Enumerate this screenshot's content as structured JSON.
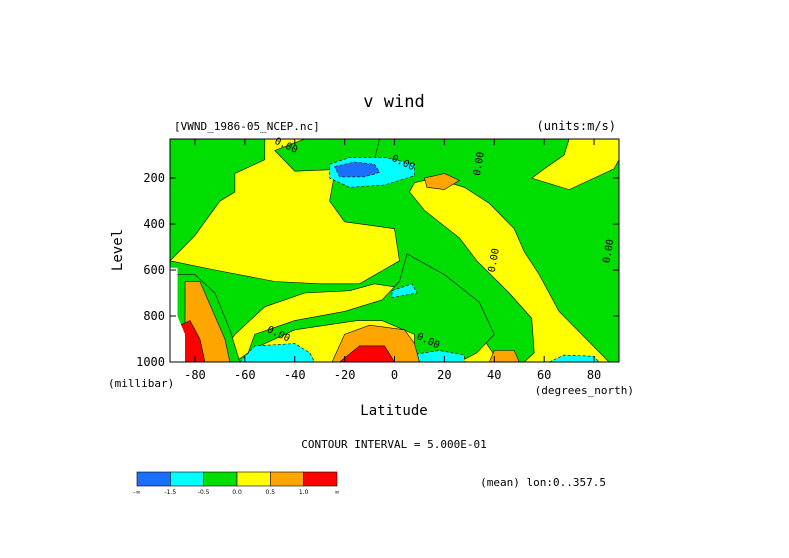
{
  "chart_data": {
    "type": "contour",
    "title": "v wind",
    "dataset_label": "[VWND_1986-05_NCEP.nc]",
    "units_label": "(units:m/s)",
    "xlabel": "Latitude",
    "ylabel": "Level",
    "x_units": "(degrees_north)",
    "y_units": "(millibar)",
    "xlim": [
      -90,
      90
    ],
    "ylim": [
      1000,
      30
    ],
    "y_inverted": true,
    "x_ticks": [
      -80,
      -60,
      -40,
      -20,
      0,
      20,
      40,
      60,
      80
    ],
    "x_tick_labels": [
      "-80",
      "-60",
      "-40",
      "-20",
      "0",
      "20",
      "40",
      "60",
      "80"
    ],
    "y_ticks": [
      200,
      400,
      600,
      800,
      1000
    ],
    "y_tick_labels": [
      "200",
      "400",
      "600",
      "800",
      "1000"
    ],
    "contour_interval_text": "CONTOUR INTERVAL = 5.000E-01",
    "contour_interval": 0.5,
    "mean_text": "(mean) lon:0..357.5",
    "contour_labels": [
      {
        "text": "0.00",
        "x": -44,
        "y": 70
      },
      {
        "text": "0.00",
        "x": 3,
        "y": 145
      },
      {
        "text": "0.00",
        "x": 35,
        "y": 140
      },
      {
        "text": "0.00",
        "x": 87,
        "y": 520
      },
      {
        "text": "0.00",
        "x": 41,
        "y": 560
      },
      {
        "text": "0.00",
        "x": -47,
        "y": 890
      },
      {
        "text": "0.00",
        "x": 13,
        "y": 920
      }
    ],
    "colorbar": {
      "tick_labels": [
        "-∞",
        "-1.5",
        "-0.5",
        "0.0",
        "0.5",
        "1.0",
        "∞"
      ],
      "colors": [
        "#1a6fff",
        "#00ffff",
        "#00dd00",
        "#ffff00",
        "#ffa500",
        "#ff0000"
      ],
      "bins": [
        "< -1.5",
        "-1.5 to -0.5",
        "-0.5 to 0.0",
        "0.0 to 0.5",
        "0.5 to 1.0",
        "> 1.0"
      ]
    },
    "regions": [
      {
        "level": "yellow",
        "note": "positive v (0 to 0.5) background",
        "poly": [
          [
            -90,
            30
          ],
          [
            90,
            30
          ],
          [
            90,
            1000
          ],
          [
            -90,
            1000
          ]
        ]
      },
      {
        "level": "green",
        "poly": [
          [
            -90,
            30
          ],
          [
            -52,
            30
          ],
          [
            -52,
            120
          ],
          [
            -64,
            180
          ],
          [
            -64,
            260
          ],
          [
            -70,
            300
          ],
          [
            -80,
            450
          ],
          [
            -90,
            560
          ]
        ]
      },
      {
        "level": "green",
        "poly": [
          [
            -90,
            560
          ],
          [
            -72,
            600
          ],
          [
            -48,
            650
          ],
          [
            -30,
            660
          ],
          [
            -14,
            660
          ],
          [
            2,
            560
          ],
          [
            0,
            420
          ],
          [
            -20,
            390
          ],
          [
            -26,
            300
          ],
          [
            -24,
            180
          ],
          [
            -28,
            100
          ],
          [
            -28,
            30
          ],
          [
            70,
            30
          ],
          [
            68,
            100
          ],
          [
            60,
            160
          ],
          [
            55,
            200
          ],
          [
            70,
            250
          ],
          [
            88,
            160
          ],
          [
            90,
            120
          ],
          [
            90,
            1000
          ],
          [
            86,
            1000
          ],
          [
            66,
            780
          ],
          [
            58,
            620
          ],
          [
            52,
            520
          ],
          [
            48,
            420
          ],
          [
            38,
            310
          ],
          [
            28,
            240
          ],
          [
            16,
            200
          ],
          [
            8,
            220
          ],
          [
            6,
            260
          ],
          [
            12,
            340
          ],
          [
            26,
            460
          ],
          [
            33,
            560
          ],
          [
            46,
            700
          ],
          [
            55,
            810
          ],
          [
            56,
            960
          ],
          [
            52,
            1000
          ],
          [
            42,
            1000
          ],
          [
            33,
            860
          ],
          [
            25,
            760
          ],
          [
            10,
            690
          ],
          [
            -8,
            660
          ],
          [
            -18,
            690
          ],
          [
            -36,
            700
          ],
          [
            -52,
            760
          ],
          [
            -64,
            880
          ],
          [
            -72,
            1000
          ],
          [
            -90,
            1000
          ]
        ]
      },
      {
        "level": "green",
        "poly": [
          [
            5,
            530
          ],
          [
            20,
            620
          ],
          [
            34,
            740
          ],
          [
            40,
            880
          ],
          [
            33,
            960
          ],
          [
            26,
            1000
          ],
          [
            8,
            1000
          ],
          [
            8,
            880
          ],
          [
            -5,
            820
          ],
          [
            -15,
            820
          ],
          [
            -40,
            860
          ],
          [
            -56,
            940
          ],
          [
            -64,
            1000
          ],
          [
            -60,
            1000
          ],
          [
            -56,
            880
          ],
          [
            -40,
            820
          ],
          [
            -20,
            780
          ],
          [
            -5,
            730
          ],
          [
            2,
            650
          ]
        ]
      },
      {
        "level": "green",
        "poly": [
          [
            -36,
            30
          ],
          [
            -48,
            80
          ],
          [
            -40,
            170
          ],
          [
            -18,
            160
          ],
          [
            -8,
            120
          ],
          [
            -6,
            30
          ]
        ]
      },
      {
        "level": "cyan",
        "poly": [
          [
            -26,
            140
          ],
          [
            -18,
            110
          ],
          [
            -4,
            110
          ],
          [
            8,
            140
          ],
          [
            8,
            190
          ],
          [
            -4,
            230
          ],
          [
            -18,
            240
          ],
          [
            -26,
            200
          ]
        ]
      },
      {
        "level": "blue",
        "poly": [
          [
            -24,
            150
          ],
          [
            -16,
            130
          ],
          [
            -8,
            140
          ],
          [
            -6,
            175
          ],
          [
            -12,
            195
          ],
          [
            -22,
            195
          ]
        ]
      },
      {
        "level": "cyan",
        "poly": [
          [
            -1,
            690
          ],
          [
            7,
            660
          ],
          [
            9,
            700
          ],
          [
            -1,
            720
          ]
        ]
      },
      {
        "level": "cyan",
        "poly": [
          [
            -62,
            1000
          ],
          [
            -56,
            930
          ],
          [
            -40,
            920
          ],
          [
            -34,
            960
          ],
          [
            -32,
            1000
          ]
        ]
      },
      {
        "level": "cyan",
        "poly": [
          [
            4,
            1000
          ],
          [
            6,
            970
          ],
          [
            18,
            950
          ],
          [
            28,
            970
          ],
          [
            28,
            1000
          ]
        ]
      },
      {
        "level": "cyan",
        "poly": [
          [
            62,
            1000
          ],
          [
            68,
            970
          ],
          [
            80,
            975
          ],
          [
            82,
            1000
          ]
        ]
      },
      {
        "level": "orange",
        "poly": [
          [
            12,
            200
          ],
          [
            20,
            180
          ],
          [
            26,
            210
          ],
          [
            20,
            250
          ],
          [
            13,
            240
          ]
        ]
      },
      {
        "level": "orange",
        "poly": [
          [
            -25,
            1000
          ],
          [
            -20,
            880
          ],
          [
            -10,
            840
          ],
          [
            4,
            860
          ],
          [
            8,
            920
          ],
          [
            10,
            1000
          ]
        ]
      },
      {
        "level": "orange",
        "poly": [
          [
            38,
            1000
          ],
          [
            40,
            950
          ],
          [
            48,
            950
          ],
          [
            50,
            1000
          ]
        ]
      },
      {
        "level": "red",
        "poly": [
          [
            -22,
            1000
          ],
          [
            -14,
            930
          ],
          [
            -4,
            930
          ],
          [
            0,
            1000
          ]
        ]
      },
      {
        "level": "green",
        "poly": [
          [
            -90,
            620
          ],
          [
            -80,
            620
          ],
          [
            -72,
            700
          ],
          [
            -66,
            860
          ],
          [
            -62,
            1000
          ],
          [
            -90,
            1000
          ]
        ]
      },
      {
        "level": "orange",
        "poly": [
          [
            -84,
            650
          ],
          [
            -78,
            650
          ],
          [
            -72,
            800
          ],
          [
            -68,
            900
          ],
          [
            -66,
            1000
          ],
          [
            -84,
            1000
          ]
        ]
      },
      {
        "level": "red",
        "poly": [
          [
            -86,
            840
          ],
          [
            -82,
            820
          ],
          [
            -78,
            900
          ],
          [
            -76,
            1000
          ],
          [
            -86,
            1000
          ]
        ]
      }
    ],
    "missing_region": {
      "note": "blank / below-ground area",
      "poly": [
        [
          -90,
          590
        ],
        [
          -87,
          590
        ],
        [
          -87,
          800
        ],
        [
          -84,
          880
        ],
        [
          -84,
          1000
        ],
        [
          -90,
          1000
        ]
      ]
    }
  }
}
